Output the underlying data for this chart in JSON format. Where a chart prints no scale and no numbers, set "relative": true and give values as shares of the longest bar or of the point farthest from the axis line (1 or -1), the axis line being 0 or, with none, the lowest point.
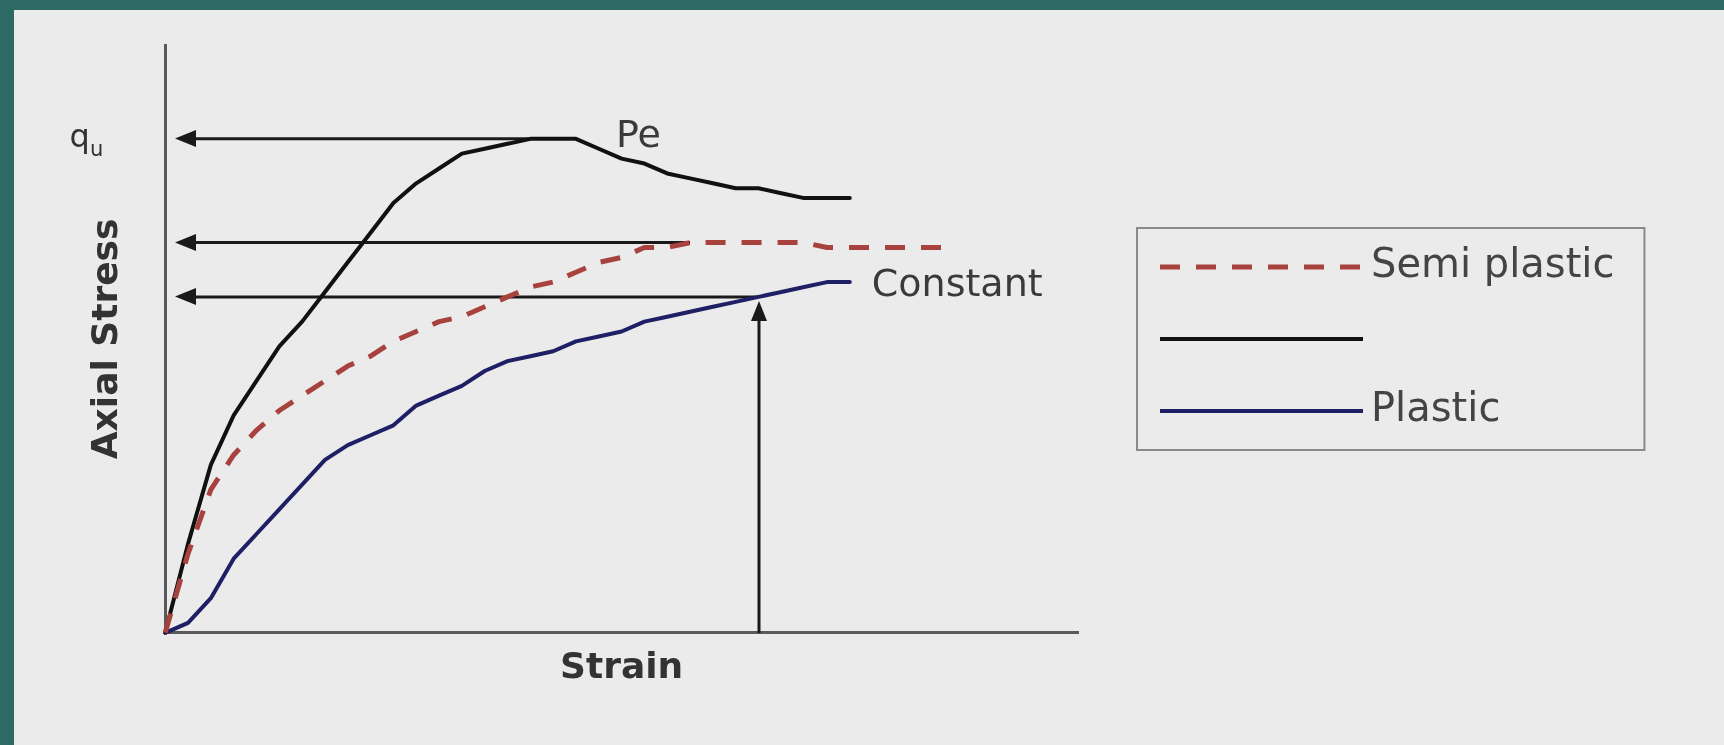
{
  "chart_data": {
    "type": "line",
    "relative": true,
    "xlabel": "Strain",
    "ylabel": "Axial Stress",
    "categories": [
      null,
      null,
      null,
      null,
      null,
      null,
      null,
      null,
      null,
      null,
      null,
      null,
      null,
      null,
      null,
      null,
      null,
      null,
      null,
      null,
      null,
      null,
      null,
      null,
      null,
      null,
      null,
      null,
      null,
      null,
      null,
      null,
      null,
      null,
      null,
      null,
      null,
      null,
      null,
      null,
      null
    ],
    "series": [
      {
        "name": "Semi plastic",
        "color": "#a8423f",
        "line_style": "dashed",
        "values": [
          0,
          0.16,
          0.29,
          0.36,
          0.41,
          0.45,
          0.48,
          0.51,
          0.54,
          0.56,
          0.59,
          0.61,
          0.63,
          0.64,
          0.66,
          0.68,
          0.7,
          0.71,
          0.73,
          0.75,
          0.76,
          0.78,
          0.78,
          0.79,
          0.79,
          0.79,
          0.79,
          0.79,
          0.79,
          0.78,
          0.78,
          0.78,
          0.78,
          0.78,
          0.78,
          null,
          null,
          null,
          null,
          null,
          null
        ]
      },
      {
        "color": "#111111",
        "values": [
          0,
          0.18,
          0.34,
          0.44,
          0.51,
          0.58,
          0.63,
          0.69,
          0.75,
          0.81,
          0.87,
          0.91,
          0.94,
          0.97,
          0.98,
          0.99,
          1,
          1,
          1,
          0.98,
          0.96,
          0.95,
          0.93,
          0.92,
          0.91,
          0.9,
          0.9,
          0.89,
          0.88,
          0.88,
          0.88,
          null,
          null,
          null,
          null,
          null,
          null,
          null,
          null,
          null,
          null
        ]
      },
      {
        "name": "Plastic",
        "color": "#1f1f66",
        "values": [
          0,
          0.02,
          0.07,
          0.15,
          0.2,
          0.25,
          0.3,
          0.35,
          0.38,
          0.4,
          0.42,
          0.46,
          0.48,
          0.5,
          0.53,
          0.55,
          0.56,
          0.57,
          0.59,
          0.6,
          0.61,
          0.63,
          0.64,
          0.65,
          0.66,
          0.67,
          0.68,
          0.69,
          0.7,
          0.71,
          0.71,
          null,
          null,
          null,
          null,
          null,
          null,
          null,
          null,
          null,
          null
        ]
      }
    ],
    "ref_lines": [
      {
        "axis": "y",
        "value": 1,
        "label": "q$_{u}$"
      },
      {
        "axis": "y",
        "value": 0.79
      },
      {
        "axis": "y",
        "value": 0.68
      }
    ],
    "annotations": [
      "Pe",
      "Constant"
    ],
    "legend": "right"
  }
}
